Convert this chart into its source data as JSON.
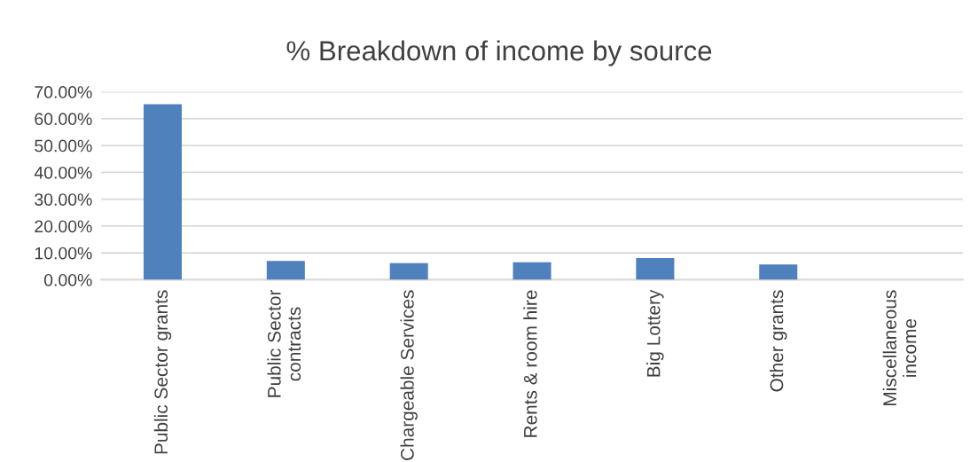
{
  "chart_data": {
    "type": "bar",
    "title": "% Breakdown of income by source",
    "categories": [
      "Public Sector grants",
      "Public Sector\ncontracts",
      "Chargeable Services",
      "Rents & room hire",
      "Big Lottery",
      "Other grants",
      "Miscellaneous\nincome"
    ],
    "values": [
      65.4,
      7.0,
      6.2,
      6.5,
      8.1,
      5.7,
      0
    ],
    "color": "#4f81bd",
    "ylim": [
      0,
      70
    ],
    "yticks": [
      {
        "value": 0,
        "label": "0.00%"
      },
      {
        "value": 10,
        "label": "10.00%"
      },
      {
        "value": 20,
        "label": "20.00%"
      },
      {
        "value": 30,
        "label": "30.00%"
      },
      {
        "value": 40,
        "label": "40.00%"
      },
      {
        "value": 50,
        "label": "50.00%"
      },
      {
        "value": 60,
        "label": "60.00%"
      },
      {
        "value": 70,
        "label": "70.00%"
      }
    ],
    "grid": "y",
    "legend": false
  }
}
